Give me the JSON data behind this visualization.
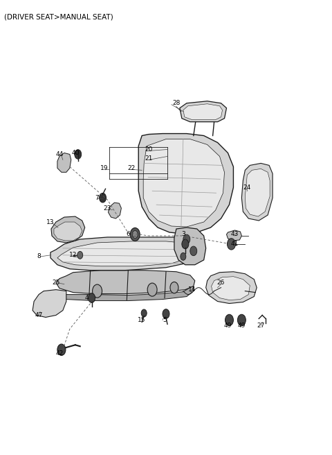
{
  "title": "(DRIVER SEAT>MANUAL SEAT)",
  "fig_width": 4.8,
  "fig_height": 6.56,
  "dpi": 100,
  "bg_color": "#ffffff",
  "lc": "#1a1a1a",
  "gray1": "#e8e8e8",
  "gray2": "#d4d4d4",
  "gray3": "#c0c0c0",
  "gray4": "#a8a8a8",
  "labels": [
    [
      "28",
      255,
      148
    ],
    [
      "20",
      215,
      215
    ],
    [
      "21",
      215,
      228
    ],
    [
      "22",
      190,
      242
    ],
    [
      "19",
      150,
      242
    ],
    [
      "40",
      108,
      220
    ],
    [
      "44",
      85,
      222
    ],
    [
      "7",
      140,
      285
    ],
    [
      "23",
      155,
      300
    ],
    [
      "13",
      72,
      320
    ],
    [
      "6",
      185,
      338
    ],
    [
      "3",
      265,
      338
    ],
    [
      "43",
      340,
      338
    ],
    [
      "41",
      340,
      352
    ],
    [
      "12",
      105,
      368
    ],
    [
      "8",
      55,
      370
    ],
    [
      "14",
      278,
      418
    ],
    [
      "25",
      80,
      408
    ],
    [
      "4",
      125,
      430
    ],
    [
      "26",
      320,
      408
    ],
    [
      "5",
      238,
      462
    ],
    [
      "15",
      205,
      462
    ],
    [
      "24",
      358,
      270
    ],
    [
      "47",
      55,
      455
    ],
    [
      "42",
      85,
      510
    ],
    [
      "49",
      330,
      470
    ],
    [
      "49",
      350,
      470
    ],
    [
      "27",
      378,
      470
    ]
  ]
}
